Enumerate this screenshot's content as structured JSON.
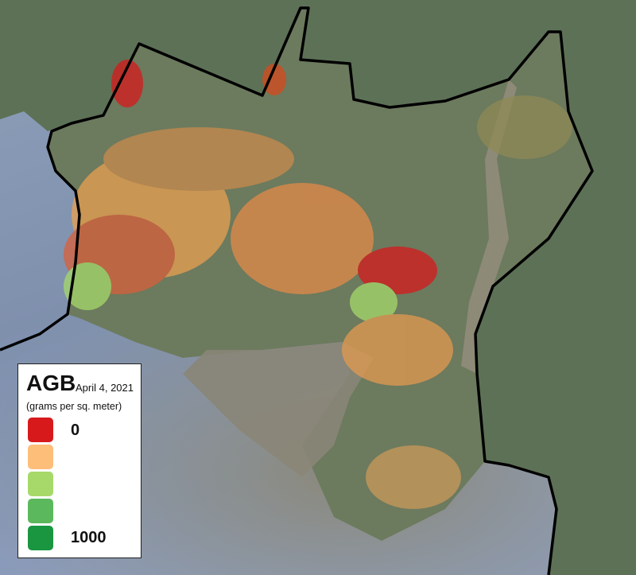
{
  "legend": {
    "title": "AGB",
    "date": "April 4, 2021",
    "unit": "(grams per sq. meter)",
    "min_label": "0",
    "max_label": "1000",
    "swatches": [
      "#d7191c",
      "#fdbe7a",
      "#a6d96a",
      "#5cb85c",
      "#1a9641"
    ]
  },
  "colors": {
    "boundary": "#000000",
    "water": "#8a8a78",
    "land": "#5f7458",
    "gulf": "#8296b8"
  }
}
